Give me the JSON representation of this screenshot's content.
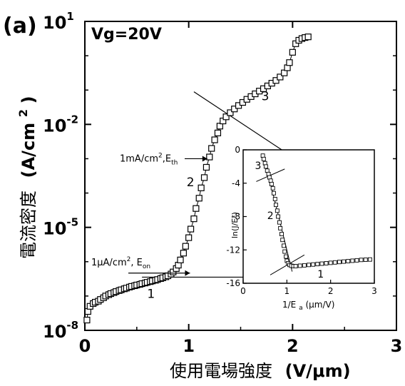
{
  "chart_data": [
    {
      "type": "scatter",
      "panel_label": "(a)",
      "annotation": "Vg=20V",
      "xlabel_text": "使用電場強度",
      "xlabel_unit": "(V/μm)",
      "ylabel_text": "電流密度",
      "ylabel_unit_pre": "(A/cm",
      "ylabel_unit_sup": "2",
      "ylabel_unit_post": ")",
      "xlim": [
        0,
        3
      ],
      "ylim_exp": [
        -8,
        1
      ],
      "y_scale": "log",
      "x_ticks": [
        "0",
        "1",
        "2",
        "3"
      ],
      "y_ticks": [
        {
          "base": "10",
          "exp": "-8",
          "value_exp": -8
        },
        {
          "base": "10",
          "exp": "-5",
          "value_exp": -5
        },
        {
          "base": "10",
          "exp": "-2",
          "value_exp": -2
        },
        {
          "base": "10",
          "exp": "1",
          "value_exp": 1
        }
      ],
      "region_labels": [
        {
          "text": "1",
          "x": 0.6,
          "y_exp": -7.05
        },
        {
          "text": "2",
          "x": 0.98,
          "y_exp": -3.8
        },
        {
          "text": "3",
          "x": 1.7,
          "y_exp": -1.3
        }
      ],
      "annotations": [
        {
          "text": "1mA/cm",
          "sup": "2",
          "tail": ",E",
          "sub": "th",
          "arrow_x": 1.2,
          "arrow_y_exp": -3
        },
        {
          "text": "1μA/cm",
          "sup": "2",
          "tail": ", E",
          "sub": "on",
          "arrow_x": 0.93,
          "arrow_y_exp": -6
        }
      ],
      "series": [
        {
          "marker": "square-open",
          "points": [
            [
              0.02,
              -7.7
            ],
            [
              0.03,
              -7.45
            ],
            [
              0.05,
              -7.3
            ],
            [
              0.08,
              -7.22
            ],
            [
              0.1,
              -7.18
            ],
            [
              0.13,
              -7.15
            ],
            [
              0.15,
              -7.1
            ],
            [
              0.18,
              -7.05
            ],
            [
              0.2,
              -7.0
            ],
            [
              0.23,
              -6.96
            ],
            [
              0.25,
              -6.93
            ],
            [
              0.28,
              -6.9
            ],
            [
              0.3,
              -6.87
            ],
            [
              0.33,
              -6.84
            ],
            [
              0.35,
              -6.82
            ],
            [
              0.38,
              -6.79
            ],
            [
              0.4,
              -6.77
            ],
            [
              0.43,
              -6.74
            ],
            [
              0.45,
              -6.72
            ],
            [
              0.48,
              -6.7
            ],
            [
              0.5,
              -6.68
            ],
            [
              0.53,
              -6.66
            ],
            [
              0.55,
              -6.64
            ],
            [
              0.58,
              -6.62
            ],
            [
              0.6,
              -6.6
            ],
            [
              0.63,
              -6.58
            ],
            [
              0.65,
              -6.56
            ],
            [
              0.68,
              -6.54
            ],
            [
              0.7,
              -6.52
            ],
            [
              0.73,
              -6.49
            ],
            [
              0.75,
              -6.47
            ],
            [
              0.78,
              -6.44
            ],
            [
              0.8,
              -6.41
            ],
            [
              0.83,
              -6.36
            ],
            [
              0.85,
              -6.3
            ],
            [
              0.88,
              -6.2
            ],
            [
              0.9,
              -6.1
            ],
            [
              0.92,
              -5.95
            ],
            [
              0.95,
              -5.75
            ],
            [
              0.97,
              -5.55
            ],
            [
              1.0,
              -5.3
            ],
            [
              1.02,
              -5.05
            ],
            [
              1.05,
              -4.75
            ],
            [
              1.07,
              -4.45
            ],
            [
              1.1,
              -4.15
            ],
            [
              1.12,
              -3.85
            ],
            [
              1.15,
              -3.55
            ],
            [
              1.17,
              -3.25
            ],
            [
              1.2,
              -2.95
            ],
            [
              1.22,
              -2.7
            ],
            [
              1.25,
              -2.45
            ],
            [
              1.28,
              -2.25
            ],
            [
              1.3,
              -2.05
            ],
            [
              1.33,
              -1.9
            ],
            [
              1.36,
              -1.78
            ],
            [
              1.4,
              -1.66
            ],
            [
              1.44,
              -1.55
            ],
            [
              1.48,
              -1.45
            ],
            [
              1.52,
              -1.36
            ],
            [
              1.56,
              -1.27
            ],
            [
              1.6,
              -1.19
            ],
            [
              1.64,
              -1.11
            ],
            [
              1.68,
              -1.03
            ],
            [
              1.72,
              -0.96
            ],
            [
              1.76,
              -0.88
            ],
            [
              1.8,
              -0.8
            ],
            [
              1.84,
              -0.72
            ],
            [
              1.88,
              -0.62
            ],
            [
              1.92,
              -0.5
            ],
            [
              1.95,
              -0.35
            ],
            [
              1.97,
              -0.2
            ],
            [
              2.0,
              0.1
            ],
            [
              2.03,
              0.35
            ],
            [
              2.06,
              0.45
            ],
            [
              2.09,
              0.5
            ],
            [
              2.12,
              0.53
            ],
            [
              2.15,
              0.55
            ]
          ]
        }
      ],
      "fit_lines": [
        {
          "p1": [
            0.55,
            -6.45
          ],
          "p2": [
            1.6,
            -6.45
          ]
        },
        {
          "p1": [
            1.05,
            -1.05
          ],
          "p2": [
            1.9,
            -2.75
          ]
        }
      ]
    },
    {
      "type": "scatter",
      "role": "inset",
      "xlabel_pre": "1/E",
      "xlabel_sub": "a",
      "xlabel_post": "(μm/V)",
      "ylabel": "ln(J/E²)",
      "xlim": [
        0,
        3
      ],
      "ylim": [
        -16,
        0
      ],
      "x_ticks": [
        "0",
        "1",
        "2",
        "3"
      ],
      "y_ticks": [
        "0",
        "-4",
        "-8",
        "-12",
        "-16"
      ],
      "region_labels": [
        {
          "text": "3",
          "x": 0.27,
          "y": -2.3
        },
        {
          "text": "2",
          "x": 0.55,
          "y": -8.3
        },
        {
          "text": "1",
          "x": 1.7,
          "y": -15.3
        }
      ],
      "series": [
        {
          "marker": "square-open",
          "points": [
            [
              0.45,
              -0.7
            ],
            [
              0.47,
              -1.1
            ],
            [
              0.5,
              -1.6
            ],
            [
              0.52,
              -2.0
            ],
            [
              0.55,
              -2.5
            ],
            [
              0.58,
              -2.9
            ],
            [
              0.6,
              -3.3
            ],
            [
              0.63,
              -3.7
            ],
            [
              0.65,
              -4.1
            ],
            [
              0.68,
              -4.6
            ],
            [
              0.7,
              -5.2
            ],
            [
              0.73,
              -5.9
            ],
            [
              0.75,
              -6.6
            ],
            [
              0.78,
              -7.3
            ],
            [
              0.8,
              -8.0
            ],
            [
              0.83,
              -8.7
            ],
            [
              0.85,
              -9.4
            ],
            [
              0.88,
              -10.1
            ],
            [
              0.9,
              -10.8
            ],
            [
              0.93,
              -11.5
            ],
            [
              0.95,
              -12.2
            ],
            [
              0.98,
              -12.8
            ],
            [
              1.0,
              -13.3
            ],
            [
              1.03,
              -13.6
            ],
            [
              1.06,
              -13.8
            ],
            [
              1.1,
              -13.9
            ],
            [
              1.15,
              -13.95
            ],
            [
              1.2,
              -13.95
            ],
            [
              1.3,
              -13.9
            ],
            [
              1.4,
              -13.85
            ],
            [
              1.5,
              -13.8
            ],
            [
              1.6,
              -13.75
            ],
            [
              1.7,
              -13.7
            ],
            [
              1.8,
              -13.65
            ],
            [
              1.9,
              -13.6
            ],
            [
              2.0,
              -13.55
            ],
            [
              2.1,
              -13.5
            ],
            [
              2.2,
              -13.45
            ],
            [
              2.3,
              -13.4
            ],
            [
              2.4,
              -13.35
            ],
            [
              2.5,
              -13.3
            ],
            [
              2.6,
              -13.25
            ],
            [
              2.7,
              -13.2
            ],
            [
              2.8,
              -13.18
            ],
            [
              2.9,
              -13.15
            ]
          ]
        }
      ],
      "fit_lines": [
        {
          "p1": [
            0.3,
            -3.8
          ],
          "p2": [
            0.95,
            -2.3
          ]
        },
        {
          "p1": [
            0.62,
            -15.0
          ],
          "p2": [
            1.4,
            -12.6
          ]
        },
        {
          "p1": [
            0.48,
            -0.9
          ],
          "p2": [
            1.12,
            -14.6
          ]
        }
      ]
    }
  ]
}
